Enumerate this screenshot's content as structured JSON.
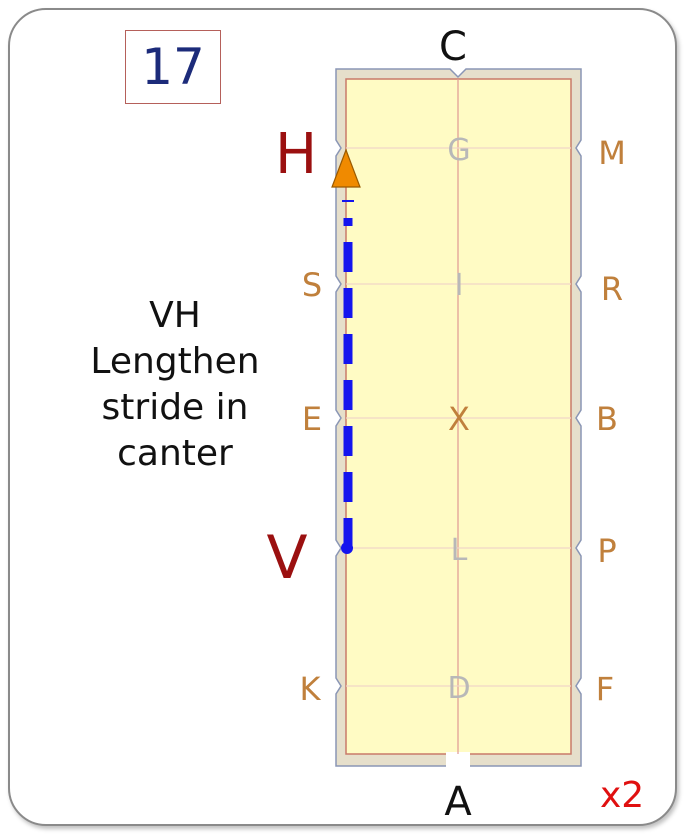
{
  "card": {
    "number": "17",
    "caption_lines": [
      "VH",
      "Lengthen",
      "stride in",
      "canter"
    ],
    "multiplier": "x2"
  },
  "arena": {
    "end_letters": {
      "top": "C",
      "bottom": "A"
    },
    "left_letters": [
      "H",
      "S",
      "E",
      "V",
      "K"
    ],
    "right_letters": [
      "M",
      "R",
      "B",
      "P",
      "F"
    ],
    "center_letters": [
      "G",
      "I",
      "X",
      "L",
      "D"
    ],
    "movement_from": "V",
    "movement_to": "H",
    "colors": {
      "arena_fill": "#fffbc4",
      "arena_border": "#c97a6a",
      "outer_fill": "#e6dfcb",
      "side_letter": "#c0803c",
      "key_letter": "#9b1010",
      "center_letter_faint": "#b8b8b8",
      "path": "#1414ee",
      "arrow": "#f08a00"
    }
  }
}
